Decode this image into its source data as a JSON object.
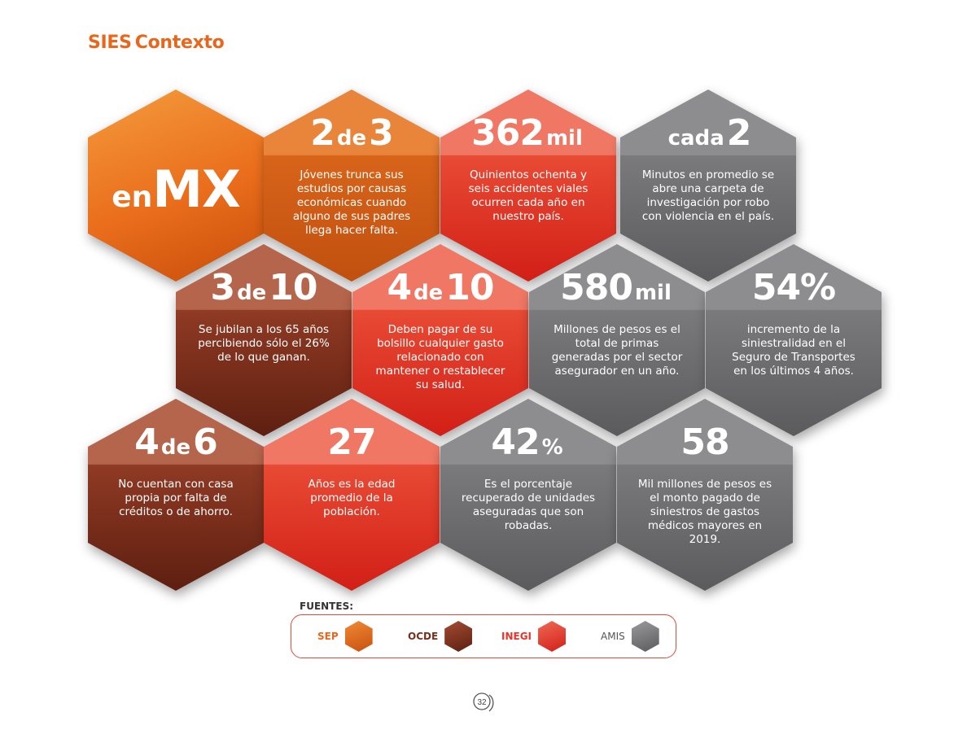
{
  "header": {
    "sies": "SIES",
    "contexto": "Contexto"
  },
  "hexagons": {
    "enmx": {
      "pre": "en",
      "big": "MX"
    },
    "h1": {
      "big": "2",
      "small": "de",
      "big2": "3",
      "desc": "Jóvenes trunca sus estudios por causas económicas cuando alguno de sus padres llega hacer falta."
    },
    "h2": {
      "big": "362",
      "small": "mil",
      "desc": "Quinientos ochenta y seis accidentes viales ocurren cada año en nuestro país."
    },
    "h3": {
      "small": "cada",
      "big": "2",
      "desc": "Minutos en promedio se abre una carpeta de investigación por robo con violencia en el país."
    },
    "h4": {
      "big": "3",
      "small": "de",
      "big2": "10",
      "desc": "Se jubilan a los 65 años percibiendo sólo el 26% de lo que ganan."
    },
    "h5": {
      "big": "4",
      "small": "de",
      "big2": "10",
      "desc": "Deben pagar de su bolsillo cualquier gasto relacionado con mantener o restablecer su salud."
    },
    "h6": {
      "big": "580",
      "small": "mil",
      "desc": "Millones de pesos es el total de primas generadas por el sector asegurador en un año."
    },
    "h7": {
      "big": "54%",
      "desc": "incremento de la siniestralidad en el Seguro de Transportes en los últimos 4 años."
    },
    "h8": {
      "big": "4",
      "small": "de",
      "big2": "6",
      "desc": "No cuentan con casa propia por falta de créditos o de ahorro."
    },
    "h9": {
      "big": "27",
      "desc": "Años es la edad promedio de la población."
    },
    "h10": {
      "big": "42",
      "small": "%",
      "desc": "Es el porcentaje recuperado de unidades aseguradas que son robadas."
    },
    "h11": {
      "big": "58",
      "desc": "Mil millones de pesos es el monto pagado de siniestros de gastos médicos mayores en 2019."
    }
  },
  "legend": {
    "title": "FUENTES:",
    "items": [
      {
        "label": "SEP",
        "color": "#e8671d"
      },
      {
        "label": "OCDE",
        "color": "#8a3522"
      },
      {
        "label": "INEGI",
        "color": "#e8342a"
      },
      {
        "label": "AMIS",
        "color": "#7d7d7f"
      }
    ]
  },
  "page_number": "32"
}
